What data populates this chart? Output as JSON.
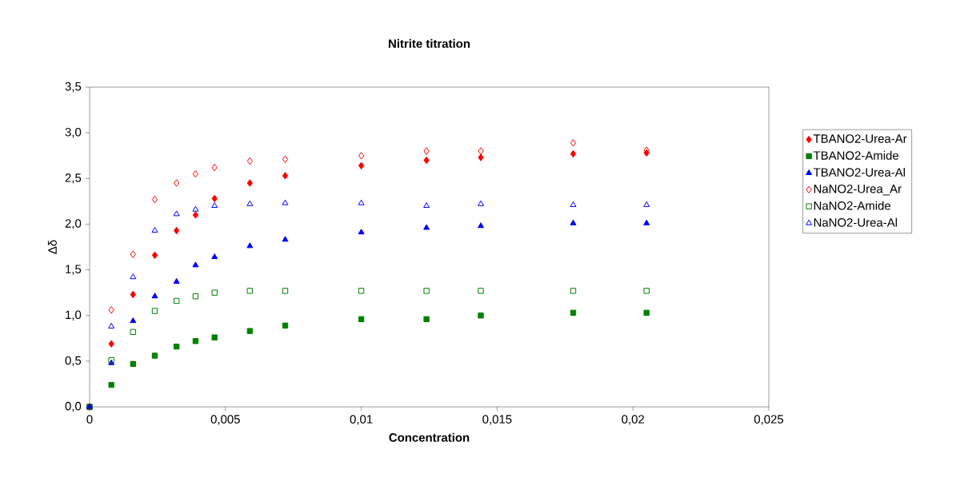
{
  "chart_data": {
    "type": "scatter",
    "title": "Nitrite titration",
    "xlabel": "Concentration",
    "ylabel": "Δδ",
    "x": [
      0,
      0.0008,
      0.0016,
      0.0024,
      0.0032,
      0.0039,
      0.0046,
      0.0059,
      0.0072,
      0.01,
      0.0124,
      0.0144,
      0.0178,
      0.0205
    ],
    "series": [
      {
        "name": "TBANO2-Urea-Ar",
        "color": "#ff0000",
        "marker": "diamond",
        "values": [
          0,
          0.69,
          1.23,
          1.66,
          1.93,
          2.1,
          2.28,
          2.45,
          2.53,
          2.64,
          2.7,
          2.73,
          2.77,
          2.78
        ]
      },
      {
        "name": "TBANO2-Amide",
        "color": "#008000",
        "marker": "square",
        "values": [
          0,
          0.24,
          0.47,
          0.56,
          0.66,
          0.72,
          0.76,
          0.83,
          0.89,
          0.96,
          0.96,
          1.0,
          1.03,
          1.03
        ]
      },
      {
        "name": "TBANO2-Urea-Al",
        "color": "#0000ff",
        "marker": "triangle",
        "values": [
          0,
          0.48,
          0.94,
          1.21,
          1.37,
          1.55,
          1.64,
          1.76,
          1.83,
          1.91,
          1.96,
          1.98,
          2.01,
          2.01
        ]
      },
      {
        "name": "NaNO2-Urea_Ar",
        "color": "#ff0000",
        "marker": "diamond",
        "values": [
          0,
          1.06,
          1.67,
          2.27,
          2.45,
          2.55,
          2.62,
          2.69,
          2.71,
          2.75,
          2.8,
          2.8,
          2.89,
          2.81
        ]
      },
      {
        "name": "NaNO2-Amide",
        "color": "#008000",
        "marker": "square",
        "values": [
          0,
          0.51,
          0.82,
          1.05,
          1.16,
          1.21,
          1.25,
          1.27,
          1.27,
          1.27,
          1.27,
          1.27,
          1.27,
          1.27
        ]
      },
      {
        "name": "NaNO2-Urea-Al",
        "color": "#0000ff",
        "marker": "triangle",
        "values": [
          0,
          0.88,
          1.42,
          1.93,
          2.11,
          2.16,
          2.2,
          2.22,
          2.23,
          2.23,
          2.2,
          2.22,
          2.21,
          2.21
        ]
      }
    ],
    "xlim": [
      0,
      0.025
    ],
    "ylim": [
      0,
      3.5
    ],
    "xticks": [
      0,
      {
        "value": 0.005,
        "label": "0,005"
      },
      {
        "value": 0.01,
        "label": "0,01"
      },
      {
        "value": 0.015,
        "label": "0,015"
      },
      {
        "value": 0.02,
        "label": "0,02"
      },
      {
        "value": 0.025,
        "label": "0,025"
      }
    ],
    "yticks": [
      {
        "value": 0,
        "label": "0,0"
      },
      {
        "value": 0.5,
        "label": "0,5"
      },
      {
        "value": 1,
        "label": "1,0"
      },
      {
        "value": 1.5,
        "label": "1,5"
      },
      {
        "value": 2,
        "label": "2,0"
      },
      {
        "value": 2.5,
        "label": "2,5"
      },
      {
        "value": 3,
        "label": "3,0"
      },
      {
        "value": 3.5,
        "label": "3,5"
      }
    ],
    "grid": false,
    "legend": "right"
  }
}
